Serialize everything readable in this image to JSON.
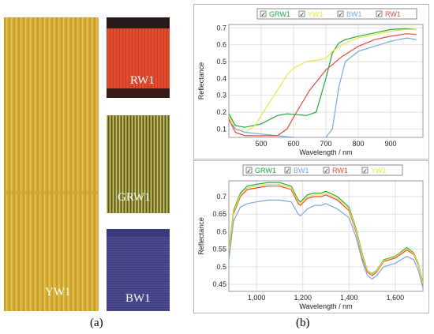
{
  "panels": {
    "a": "(a)",
    "b": "(b)"
  },
  "swatches": {
    "yw1": {
      "label": "YW1",
      "color": "#d6b23a"
    },
    "rw1": {
      "label": "RW1",
      "color": "#e14a2e"
    },
    "grw1": {
      "label": "GRW1",
      "color": "#8f8c3e"
    },
    "bw1": {
      "label": "BW1",
      "color": "#4a4a8f"
    }
  },
  "series_colors": {
    "GRW1": "#22a84a",
    "YW1": "#e6e641",
    "BW1": "#7aa7d8",
    "RW1": "#e84a3c"
  },
  "chart_data": [
    {
      "type": "line",
      "xlabel": "Wavelength / nm",
      "ylabel": "Reflectance",
      "xlim": [
        400,
        1000
      ],
      "ylim": [
        0.05,
        0.72
      ],
      "xticks": [
        500,
        600,
        700,
        800,
        900
      ],
      "yticks": [
        0.1,
        0.2,
        0.3,
        0.4,
        0.5,
        0.6,
        0.7
      ],
      "tick_labels_x": [
        "500",
        "600",
        "700",
        "800",
        "900"
      ],
      "tick_labels_y": [
        "0.1",
        "0.2",
        "0.3",
        "0.4",
        "0.5",
        "0.6",
        "0.7"
      ],
      "legend": [
        "GRW1",
        "YW1",
        "BW1",
        "RW1"
      ],
      "series": [
        {
          "name": "GRW1",
          "x": [
            400,
            420,
            450,
            500,
            550,
            580,
            610,
            640,
            670,
            700,
            720,
            740,
            760,
            800,
            850,
            900,
            950,
            980
          ],
          "y": [
            0.19,
            0.12,
            0.11,
            0.13,
            0.18,
            0.19,
            0.185,
            0.18,
            0.2,
            0.4,
            0.55,
            0.61,
            0.63,
            0.65,
            0.67,
            0.69,
            0.695,
            0.69
          ]
        },
        {
          "name": "YW1",
          "x": [
            400,
            420,
            450,
            480,
            500,
            550,
            580,
            600,
            640,
            680,
            700,
            720,
            750,
            800,
            850,
            900,
            950,
            980
          ],
          "y": [
            0.18,
            0.1,
            0.08,
            0.12,
            0.18,
            0.33,
            0.42,
            0.46,
            0.5,
            0.51,
            0.52,
            0.56,
            0.6,
            0.64,
            0.66,
            0.68,
            0.69,
            0.69
          ]
        },
        {
          "name": "BW1",
          "x": [
            400,
            420,
            450,
            500,
            550,
            600,
            650,
            700,
            720,
            740,
            760,
            800,
            850,
            900,
            950,
            980
          ],
          "y": [
            0.15,
            0.1,
            0.08,
            0.07,
            0.06,
            0.05,
            0.045,
            0.05,
            0.1,
            0.35,
            0.5,
            0.56,
            0.59,
            0.62,
            0.64,
            0.63
          ]
        },
        {
          "name": "RW1",
          "x": [
            400,
            420,
            450,
            500,
            550,
            580,
            600,
            650,
            700,
            750,
            800,
            850,
            900,
            950,
            980
          ],
          "y": [
            0.16,
            0.08,
            0.06,
            0.06,
            0.06,
            0.1,
            0.17,
            0.33,
            0.45,
            0.53,
            0.59,
            0.63,
            0.65,
            0.665,
            0.66
          ]
        }
      ]
    },
    {
      "type": "line",
      "xlabel": "Wavelength / nm",
      "ylabel": "Reflectance",
      "xlim": [
        880,
        1720
      ],
      "ylim": [
        0.43,
        0.745
      ],
      "xticks": [
        1000,
        1200,
        1400,
        1600
      ],
      "yticks": [
        0.45,
        0.5,
        0.55,
        0.6,
        0.65,
        0.7
      ],
      "tick_labels_x": [
        "1,000",
        "1,200",
        "1,400",
        "1,600"
      ],
      "tick_labels_y": [
        "0.45",
        "0.5",
        "0.55",
        "0.6",
        "0.65",
        "0.7"
      ],
      "legend": [
        "GRW1",
        "BW1",
        "RW1",
        "YW1"
      ],
      "series": [
        {
          "name": "GRW1",
          "x": [
            880,
            900,
            930,
            960,
            1000,
            1050,
            1100,
            1150,
            1180,
            1190,
            1220,
            1250,
            1280,
            1300,
            1350,
            1400,
            1430,
            1460,
            1480,
            1500,
            1520,
            1550,
            1600,
            1650,
            1680,
            1700,
            1720
          ],
          "y": [
            0.55,
            0.66,
            0.71,
            0.73,
            0.735,
            0.74,
            0.74,
            0.73,
            0.69,
            0.685,
            0.705,
            0.71,
            0.71,
            0.715,
            0.7,
            0.67,
            0.61,
            0.53,
            0.49,
            0.48,
            0.49,
            0.52,
            0.53,
            0.555,
            0.54,
            0.51,
            0.455
          ]
        },
        {
          "name": "BW1",
          "x": [
            880,
            900,
            930,
            960,
            1000,
            1050,
            1100,
            1150,
            1180,
            1190,
            1220,
            1250,
            1280,
            1300,
            1350,
            1400,
            1430,
            1460,
            1480,
            1500,
            1520,
            1550,
            1600,
            1650,
            1680,
            1700,
            1720
          ],
          "y": [
            0.52,
            0.63,
            0.67,
            0.68,
            0.685,
            0.69,
            0.69,
            0.685,
            0.65,
            0.645,
            0.665,
            0.675,
            0.675,
            0.68,
            0.665,
            0.64,
            0.585,
            0.51,
            0.475,
            0.465,
            0.475,
            0.5,
            0.51,
            0.53,
            0.52,
            0.49,
            0.44
          ]
        },
        {
          "name": "RW1",
          "x": [
            880,
            900,
            930,
            960,
            1000,
            1050,
            1100,
            1150,
            1180,
            1190,
            1220,
            1250,
            1280,
            1300,
            1350,
            1400,
            1430,
            1460,
            1480,
            1500,
            1520,
            1550,
            1600,
            1650,
            1680,
            1700,
            1720
          ],
          "y": [
            0.54,
            0.65,
            0.7,
            0.72,
            0.725,
            0.73,
            0.73,
            0.72,
            0.68,
            0.675,
            0.695,
            0.7,
            0.7,
            0.705,
            0.69,
            0.66,
            0.6,
            0.52,
            0.485,
            0.475,
            0.485,
            0.515,
            0.525,
            0.548,
            0.535,
            0.505,
            0.45
          ]
        },
        {
          "name": "YW1",
          "x": [
            880,
            900,
            930,
            960,
            1000,
            1050,
            1100,
            1150,
            1180,
            1190,
            1220,
            1250,
            1280,
            1300,
            1350,
            1400,
            1430,
            1460,
            1480,
            1500,
            1520,
            1550,
            1600,
            1650,
            1680,
            1700,
            1720
          ],
          "y": [
            0.545,
            0.655,
            0.705,
            0.725,
            0.73,
            0.735,
            0.735,
            0.725,
            0.685,
            0.68,
            0.7,
            0.705,
            0.705,
            0.71,
            0.695,
            0.665,
            0.605,
            0.525,
            0.49,
            0.478,
            0.488,
            0.518,
            0.528,
            0.552,
            0.538,
            0.508,
            0.452
          ]
        }
      ]
    }
  ]
}
